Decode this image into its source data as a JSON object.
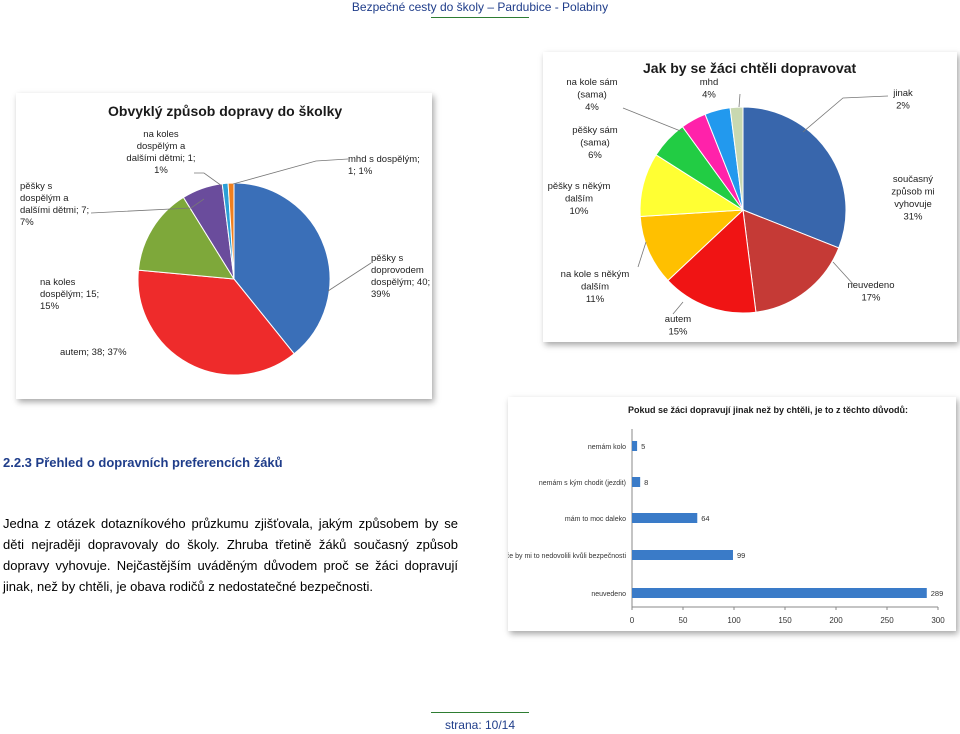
{
  "header": {
    "text": "Bezpečné cesty do školy – Pardubice - Polabiny"
  },
  "chart1": {
    "title": "Obvyklý způsob dopravy do školky",
    "labels": [
      {
        "lines": [
          "pěšky s",
          "doprovodem",
          "dospělým; 40;",
          "39%"
        ]
      },
      {
        "lines": [
          "autem; 38; 37%"
        ]
      },
      {
        "lines": [
          "na koles",
          "dospělým; 15;",
          "15%"
        ]
      },
      {
        "lines": [
          "pěšky s",
          "dospělým a",
          "dalšími dětmi; 7;",
          "7%"
        ]
      },
      {
        "lines": [
          "na koles",
          "dospělým a",
          "dalšími dětmi; 1;",
          "1%"
        ]
      },
      {
        "lines": [
          "mhd s dospělým;",
          "1; 1%"
        ]
      }
    ]
  },
  "chart2": {
    "title": "Jak by se žáci chtěli dopravovat",
    "labels": [
      {
        "lines": [
          "současný",
          "způsob mi",
          "vyhovuje",
          "31%"
        ]
      },
      {
        "lines": [
          "neuvedeno",
          "17%"
        ]
      },
      {
        "lines": [
          "autem",
          "15%"
        ]
      },
      {
        "lines": [
          "na kole s někým",
          "dalším",
          "11%"
        ]
      },
      {
        "lines": [
          "pěšky s někým",
          "dalším",
          "10%"
        ]
      },
      {
        "lines": [
          "pěšky sám",
          "(sama)",
          "6%"
        ]
      },
      {
        "lines": [
          "na kole sám",
          "(sama)",
          "4%"
        ]
      },
      {
        "lines": [
          "mhd",
          "4%"
        ]
      },
      {
        "lines": [
          "jinak",
          "2%"
        ]
      }
    ]
  },
  "chart3": {
    "title": "Pokud se žáci dopravují jinak než by chtěli, je to z těchto důvodů:",
    "ticks": [
      "0",
      "50",
      "100",
      "150",
      "200",
      "250",
      "300"
    ]
  },
  "chart_data": [
    {
      "type": "pie",
      "title": "Obvyklý způsob dopravy do školky",
      "categories": [
        "pěšky s doprovodem dospělým",
        "autem",
        "na koles dospělým",
        "pěšky s dospělým a dalšími dětmi",
        "na koles dospělým a dalšími dětmi",
        "mhd s dospělým"
      ],
      "values": [
        40,
        38,
        15,
        7,
        1,
        1
      ],
      "colors": [
        "#3a6fb8",
        "#ee2b2b",
        "#7ea83a",
        "#6a4c9c",
        "#2b9fd6",
        "#f07f1e"
      ]
    },
    {
      "type": "pie",
      "title": "Jak by se žáci chtěli dopravovat",
      "categories": [
        "současný způsob mi vyhovuje",
        "neuvedeno",
        "autem",
        "na kole s někým dalším",
        "pěšky s někým dalším",
        "pěšky sám (sama)",
        "na kole sám (sama)",
        "mhd",
        "jinak"
      ],
      "values": [
        31,
        17,
        15,
        11,
        10,
        6,
        4,
        4,
        2
      ],
      "colors": [
        "#3866ac",
        "#c53a36",
        "#f01414",
        "#ffc000",
        "#ffff33",
        "#22cc44",
        "#ff22aa",
        "#2299ee",
        "#c8d8b0"
      ]
    },
    {
      "type": "bar",
      "orientation": "horizontal",
      "title": "Pokud se žáci dopravují jinak než by chtěli, je to z těchto důvodů:",
      "categories": [
        "nemám kolo",
        "nemám s kým chodit (jezdit)",
        "mám to moc daleko",
        "rodiče by mi to nedovolili kvůli bezpečnosti",
        "neuvedeno"
      ],
      "values": [
        5,
        8,
        64,
        99,
        289
      ],
      "xlim": [
        0,
        300
      ],
      "color": "#3a7bc8"
    }
  ],
  "section": {
    "title": "2.2.3 Přehled o dopravních preferencích žáků"
  },
  "paragraph": {
    "text": "Jedna z otázek dotazníkového průzkumu zjišťovala, jakým způsobem by se děti nejraději dopravovaly do školy. Zhruba třetině žáků současný způsob dopravy vyhovuje. Nejčastějším uváděným důvodem proč se žáci dopravují jinak, než by chtěli, je obava rodičů z nedostatečné bezpečnosti."
  },
  "footer": {
    "text": "strana: 10/14"
  }
}
